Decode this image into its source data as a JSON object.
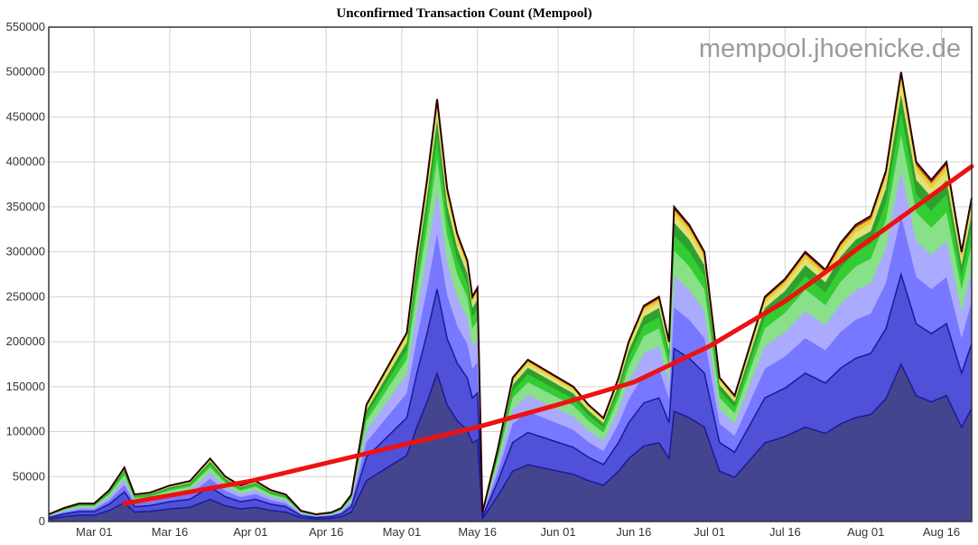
{
  "chart_data": {
    "type": "area",
    "title": "Unconfirmed Transaction Count (Mempool)",
    "watermark": "mempool.jhoenicke.de",
    "ylim": [
      0,
      550000
    ],
    "y_ticks": [
      0,
      50000,
      100000,
      150000,
      200000,
      250000,
      300000,
      350000,
      400000,
      450000,
      500000,
      550000
    ],
    "x_range": [
      "2018-02-20",
      "2018-08-22"
    ],
    "x_ticks": [
      {
        "date": "2018-03-01",
        "label": "Mar 01"
      },
      {
        "date": "2018-03-16",
        "label": "Mar 16"
      },
      {
        "date": "2018-04-01",
        "label": "Apr 01"
      },
      {
        "date": "2018-04-16",
        "label": "Apr 16"
      },
      {
        "date": "2018-05-01",
        "label": "May 01"
      },
      {
        "date": "2018-05-16",
        "label": "May 16"
      },
      {
        "date": "2018-06-01",
        "label": "Jun 01"
      },
      {
        "date": "2018-06-16",
        "label": "Jun 16"
      },
      {
        "date": "2018-07-01",
        "label": "Jul 01"
      },
      {
        "date": "2018-07-16",
        "label": "Jul 16"
      },
      {
        "date": "2018-08-01",
        "label": "Aug 01"
      },
      {
        "date": "2018-08-16",
        "label": "Aug 16"
      }
    ],
    "grid": true,
    "total_series": {
      "x": [
        "2018-02-20",
        "2018-02-23",
        "2018-02-26",
        "2018-03-01",
        "2018-03-04",
        "2018-03-07",
        "2018-03-09",
        "2018-03-12",
        "2018-03-16",
        "2018-03-20",
        "2018-03-24",
        "2018-03-27",
        "2018-03-30",
        "2018-04-02",
        "2018-04-05",
        "2018-04-08",
        "2018-04-11",
        "2018-04-14",
        "2018-04-17",
        "2018-04-19",
        "2018-04-21",
        "2018-04-24",
        "2018-04-27",
        "2018-04-30",
        "2018-05-02",
        "2018-05-04",
        "2018-05-06",
        "2018-05-08",
        "2018-05-10",
        "2018-05-12",
        "2018-05-14",
        "2018-05-15",
        "2018-05-16",
        "2018-05-17",
        "2018-05-20",
        "2018-05-23",
        "2018-05-26",
        "2018-05-29",
        "2018-06-01",
        "2018-06-04",
        "2018-06-07",
        "2018-06-10",
        "2018-06-13",
        "2018-06-15",
        "2018-06-18",
        "2018-06-21",
        "2018-06-23",
        "2018-06-24",
        "2018-06-27",
        "2018-06-30",
        "2018-07-03",
        "2018-07-06",
        "2018-07-09",
        "2018-07-12",
        "2018-07-16",
        "2018-07-20",
        "2018-07-24",
        "2018-07-27",
        "2018-07-30",
        "2018-08-02",
        "2018-08-05",
        "2018-08-08",
        "2018-08-11",
        "2018-08-14",
        "2018-08-17",
        "2018-08-20",
        "2018-08-22"
      ],
      "values": [
        8000,
        15000,
        20000,
        20000,
        35000,
        60000,
        30000,
        32000,
        40000,
        45000,
        70000,
        50000,
        40000,
        45000,
        35000,
        30000,
        12000,
        8000,
        10000,
        15000,
        30000,
        130000,
        160000,
        190000,
        210000,
        300000,
        380000,
        470000,
        370000,
        320000,
        290000,
        250000,
        260000,
        10000,
        80000,
        160000,
        180000,
        170000,
        160000,
        150000,
        130000,
        115000,
        160000,
        200000,
        240000,
        250000,
        200000,
        350000,
        330000,
        300000,
        160000,
        140000,
        195000,
        250000,
        270000,
        300000,
        280000,
        310000,
        330000,
        340000,
        390000,
        500000,
        400000,
        380000,
        400000,
        300000,
        360000
      ]
    },
    "stacked_bands_colors": [
      "#45458f",
      "#5050d8",
      "#7777ff",
      "#aaaaff",
      "#88e088",
      "#33cc33",
      "#2ea02e",
      "#e0e080",
      "#e8d020",
      "#c04040"
    ],
    "trend_line": {
      "color": "#ee1111",
      "x": [
        "2018-03-07",
        "2018-04-01",
        "2018-05-01",
        "2018-05-16",
        "2018-06-01",
        "2018-06-16",
        "2018-07-01",
        "2018-07-16",
        "2018-08-01",
        "2018-08-22"
      ],
      "values": [
        20000,
        45000,
        85000,
        105000,
        130000,
        155000,
        195000,
        245000,
        310000,
        395000
      ]
    }
  }
}
